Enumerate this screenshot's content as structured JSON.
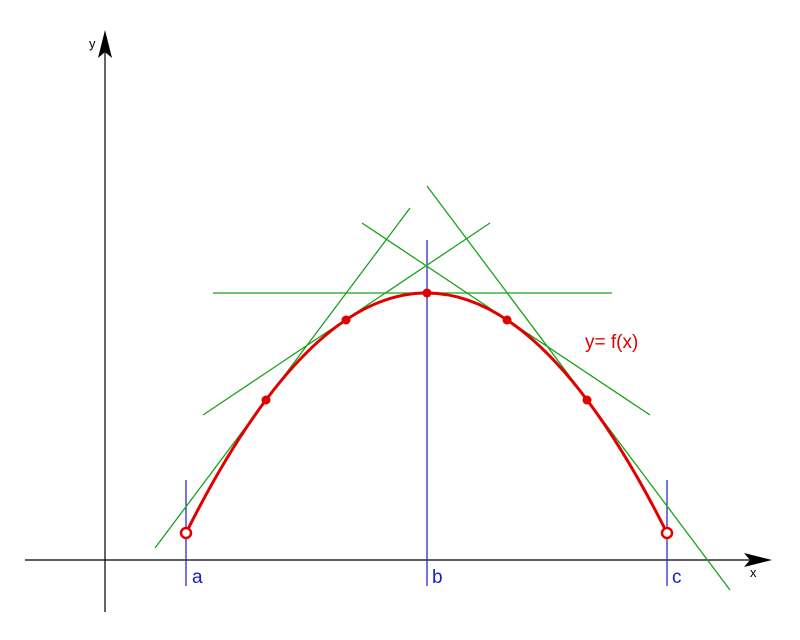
{
  "axes": {
    "x_label": "x",
    "y_label": "y"
  },
  "points": {
    "a": "a",
    "b": "b",
    "c": "c"
  },
  "function_label": "y= f(x)"
}
